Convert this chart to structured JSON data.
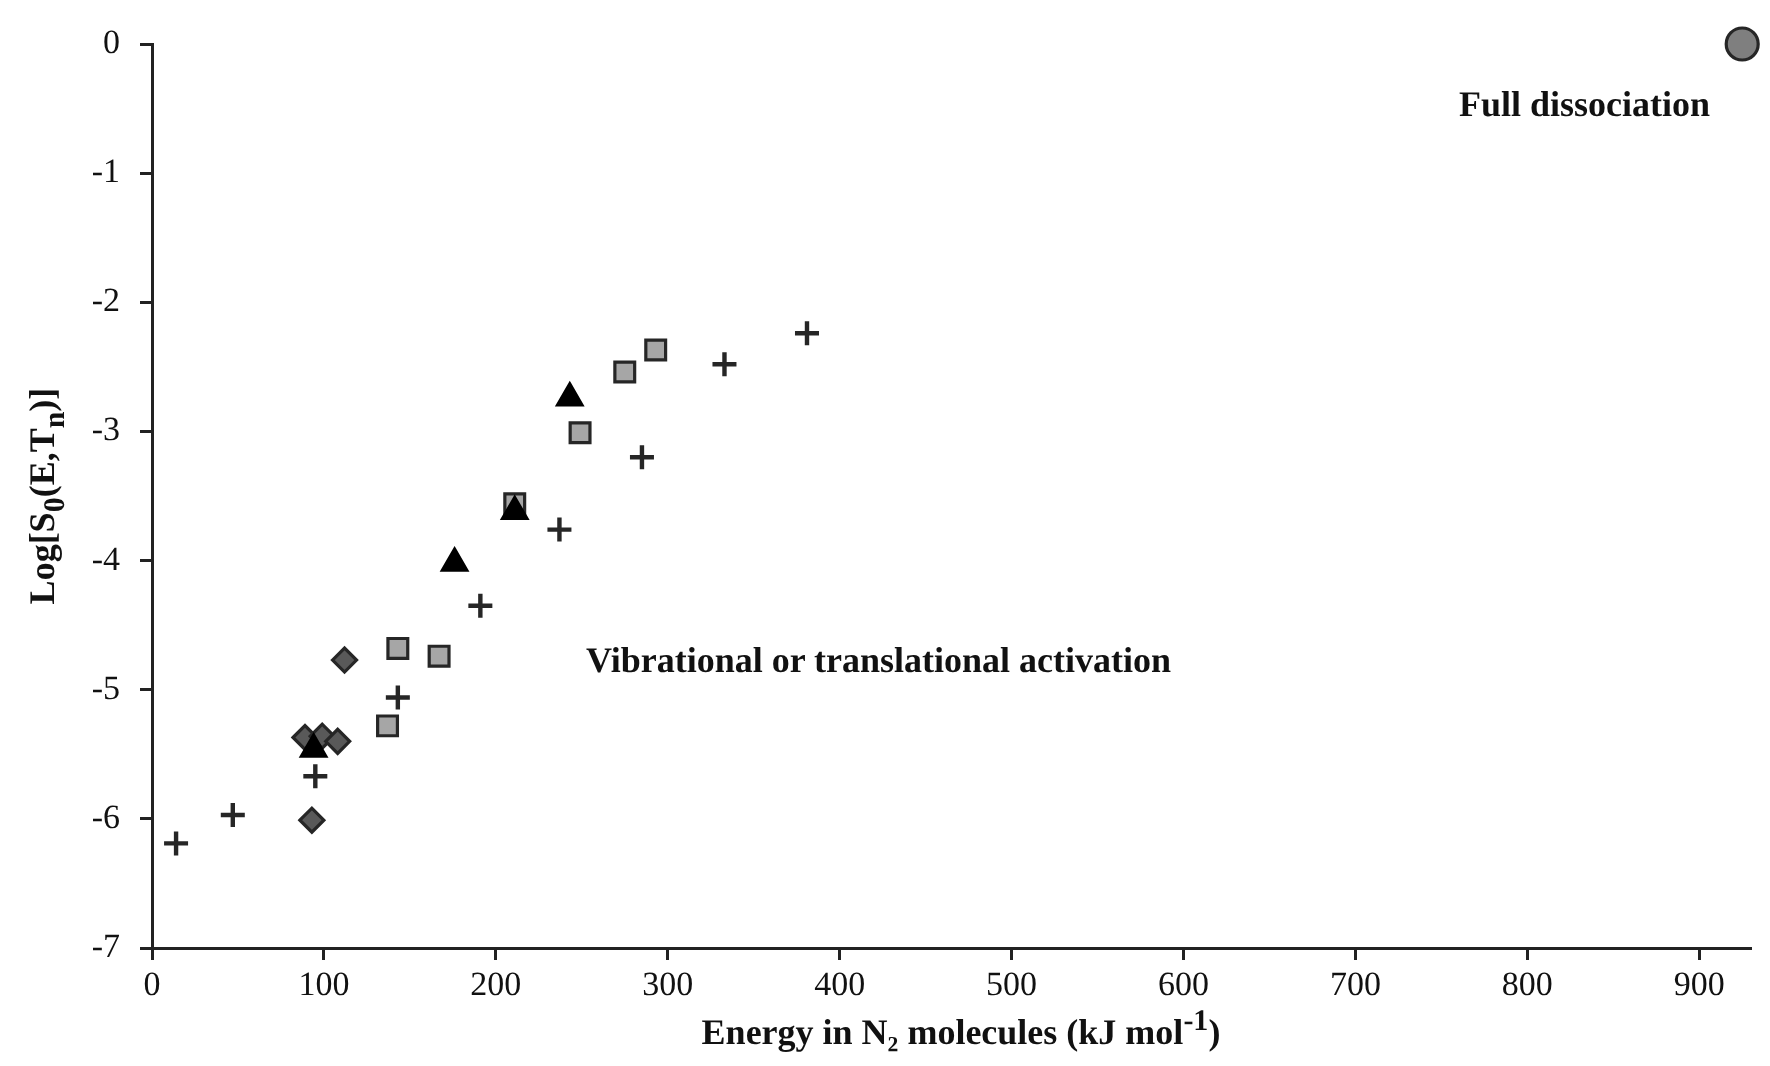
{
  "chart_data": {
    "type": "scatter",
    "xlabel": "Energy in N₂ molecules (kJ mol$^{-1}$)",
    "ylabel": "Log[S$_{0}$(E,T$_{n}$)]",
    "annotations": [
      "Full dissociation",
      "Vibrational or translational activation"
    ],
    "xlim": [
      0,
      930
    ],
    "xticks": [
      0,
      100,
      200,
      300,
      400,
      500,
      600,
      700,
      800,
      900
    ],
    "ylim": [
      -7,
      0
    ],
    "yticks": [
      -7,
      -6,
      -5,
      -4,
      -3,
      -2,
      -1,
      0
    ],
    "grid": false,
    "legend": false,
    "series": [
      {
        "color": "#262626",
        "marker": "cross",
        "x": [
          14,
          47,
          95,
          143,
          191,
          237,
          285,
          333,
          381
        ],
        "values": [
          -6.19,
          -5.97,
          -5.67,
          -5.06,
          -4.35,
          -3.76,
          -3.2,
          -2.48,
          -2.24
        ]
      },
      {
        "color": "#000000",
        "marker": "triangle",
        "x": [
          94,
          176,
          211,
          243
        ],
        "values": [
          -5.46,
          -4.02,
          -3.62,
          -2.74
        ]
      },
      {
        "color": "#a6a6a6",
        "marker": "square",
        "x": [
          137,
          143,
          167,
          211,
          249,
          275,
          293
        ],
        "values": [
          -5.28,
          -4.68,
          -4.74,
          -3.56,
          -3.01,
          -2.54,
          -2.37
        ]
      },
      {
        "color": "#595959",
        "marker": "diamond",
        "x": [
          89,
          99,
          108,
          112,
          93
        ],
        "values": [
          -5.37,
          -5.36,
          -5.4,
          -4.77,
          -6.01
        ]
      },
      {
        "color": "#7f7f7f",
        "marker": "circle",
        "x": [
          925
        ],
        "values": [
          0
        ]
      }
    ]
  }
}
